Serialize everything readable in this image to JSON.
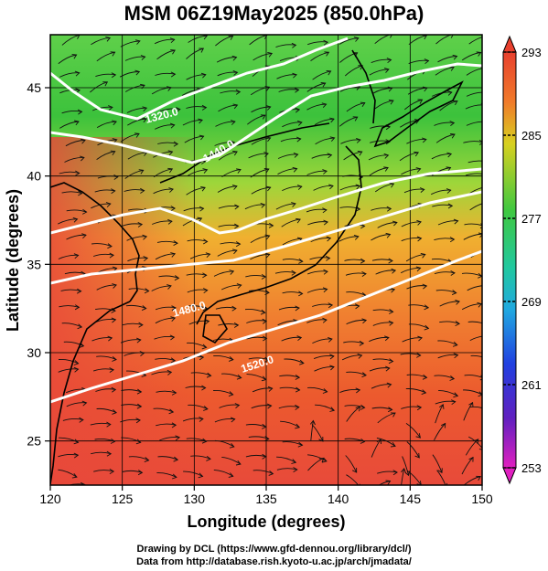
{
  "title": "MSM 06Z19May2025 (850.0hPa)",
  "x_axis": {
    "label": "Longitude (degrees)",
    "range": [
      120,
      150
    ],
    "ticks": [
      "120",
      "125",
      "130",
      "135",
      "140",
      "145",
      "150"
    ]
  },
  "y_axis": {
    "label": "Latitude  (degrees)",
    "range": [
      22.5,
      48
    ],
    "ticks": [
      "25",
      "30",
      "35",
      "40",
      "45"
    ]
  },
  "colorbar": {
    "range": [
      253,
      293
    ],
    "labels": [
      "293",
      "285",
      "277",
      "269",
      "261",
      "253"
    ]
  },
  "contours": [
    {
      "label": "1320.0"
    },
    {
      "label": "1440.0"
    },
    {
      "label": "1480.0"
    },
    {
      "label": "1520.0"
    }
  ],
  "footer": {
    "line1": "Drawing by DCL (https://www.gfd-dennou.org/library/dcl/)",
    "line2": "Data from http://database.rish.kyoto-u.ac.jp/arch/jmadata/"
  }
}
